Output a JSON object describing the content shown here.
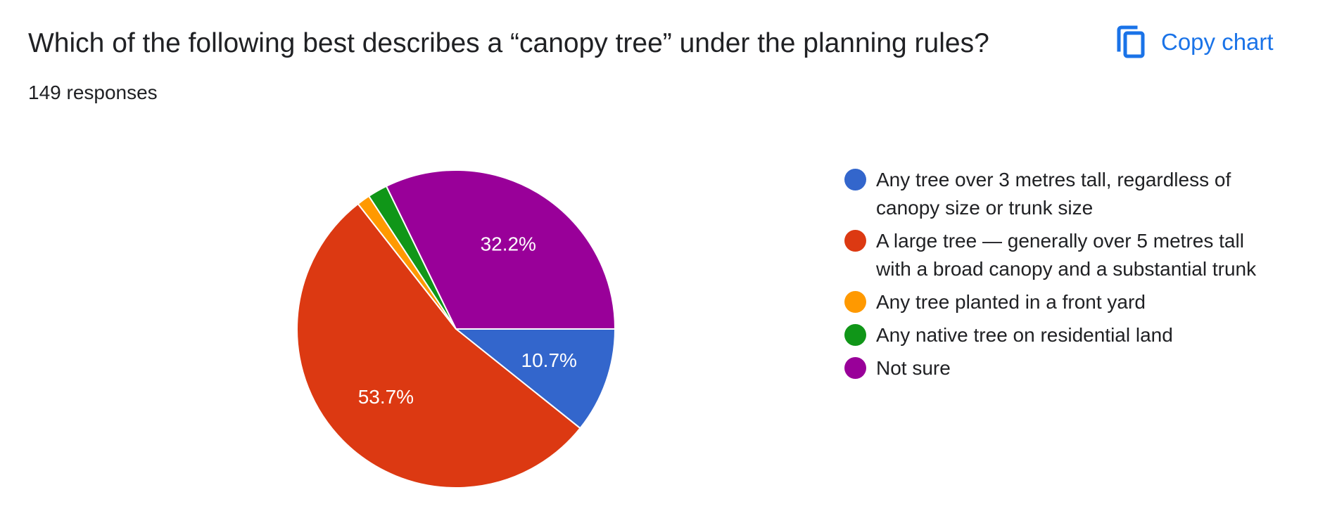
{
  "header": {
    "question": "Which of the following best describes a “canopy tree” under the planning rules?",
    "responses": "149 responses",
    "copy_label": "Copy chart",
    "copy_icon": "copy-icon"
  },
  "colors": {
    "accent": "#1a73e8",
    "slice_stroke": "#ffffff"
  },
  "chart_data": {
    "type": "pie",
    "title": "Which of the following best describes a “canopy tree” under the planning rules?",
    "total_responses": 149,
    "legend_position": "right",
    "slices": [
      {
        "label": "Any tree over 3 metres tall, regardless of canopy size or trunk size",
        "value": 16,
        "percent_label": "10.7%",
        "color": "#3366cc"
      },
      {
        "label": "A large tree — generally over 5 metres tall with a broad canopy and a substantial trunk",
        "value": 80,
        "percent_label": "53.7%",
        "color": "#dc3912"
      },
      {
        "label": "Any tree planted in a front yard",
        "value": 2,
        "percent_label": "",
        "color": "#ff9900"
      },
      {
        "label": "Any native tree on residential land",
        "value": 3,
        "percent_label": "",
        "color": "#109618"
      },
      {
        "label": "Not sure",
        "value": 48,
        "percent_label": "32.2%",
        "color": "#990099"
      }
    ]
  }
}
